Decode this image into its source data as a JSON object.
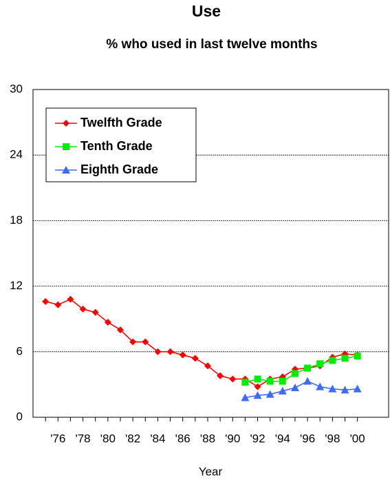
{
  "chart_data": {
    "type": "line",
    "title": "Use",
    "subtitle": "% who used in last twelve months",
    "xlabel": "Year",
    "x": [
      1975,
      1976,
      1977,
      1978,
      1979,
      1980,
      1981,
      1982,
      1983,
      1984,
      1985,
      1986,
      1987,
      1988,
      1989,
      1990,
      1991,
      1992,
      1993,
      1994,
      1995,
      1996,
      1997,
      1998,
      1999,
      2000
    ],
    "series": [
      {
        "name": "Twelfth Grade",
        "color": "#ff0000",
        "marker": "diamond",
        "values": [
          10.6,
          10.3,
          10.8,
          9.9,
          9.6,
          8.7,
          8.0,
          6.9,
          6.9,
          6.0,
          6.0,
          5.7,
          5.4,
          4.7,
          3.8,
          3.5,
          3.5,
          2.8,
          3.5,
          3.7,
          4.4,
          4.5,
          4.7,
          5.5,
          5.8,
          5.7
        ]
      },
      {
        "name": "Tenth Grade",
        "color": "#00ee00",
        "marker": "square",
        "values": [
          null,
          null,
          null,
          null,
          null,
          null,
          null,
          null,
          null,
          null,
          null,
          null,
          null,
          null,
          null,
          null,
          3.2,
          3.5,
          3.3,
          3.3,
          4.0,
          4.5,
          4.9,
          5.2,
          5.4,
          5.6
        ]
      },
      {
        "name": "Eighth Grade",
        "color": "#3d6bff",
        "marker": "triangle",
        "values": [
          null,
          null,
          null,
          null,
          null,
          null,
          null,
          null,
          null,
          null,
          null,
          null,
          null,
          null,
          null,
          null,
          1.8,
          2.0,
          2.1,
          2.4,
          2.7,
          3.3,
          2.8,
          2.6,
          2.5,
          2.6
        ]
      }
    ],
    "xlim": [
      1974,
      2002.5
    ],
    "xticks": [
      {
        "value": 1976,
        "label": "'76"
      },
      {
        "value": 1978,
        "label": "'78"
      },
      {
        "value": 1980,
        "label": "'80"
      },
      {
        "value": 1982,
        "label": "'82"
      },
      {
        "value": 1984,
        "label": "'84"
      },
      {
        "value": 1986,
        "label": "'86"
      },
      {
        "value": 1988,
        "label": "'88"
      },
      {
        "value": 1990,
        "label": "'90"
      },
      {
        "value": 1992,
        "label": "'92"
      },
      {
        "value": 1994,
        "label": "'94"
      },
      {
        "value": 1996,
        "label": "'96"
      },
      {
        "value": 1998,
        "label": "'98"
      },
      {
        "value": 2000,
        "label": "'00"
      }
    ],
    "ylim": [
      0,
      30
    ],
    "yticks": [
      0,
      6,
      12,
      18,
      24,
      30
    ],
    "grid": true,
    "legend": "upper left"
  }
}
